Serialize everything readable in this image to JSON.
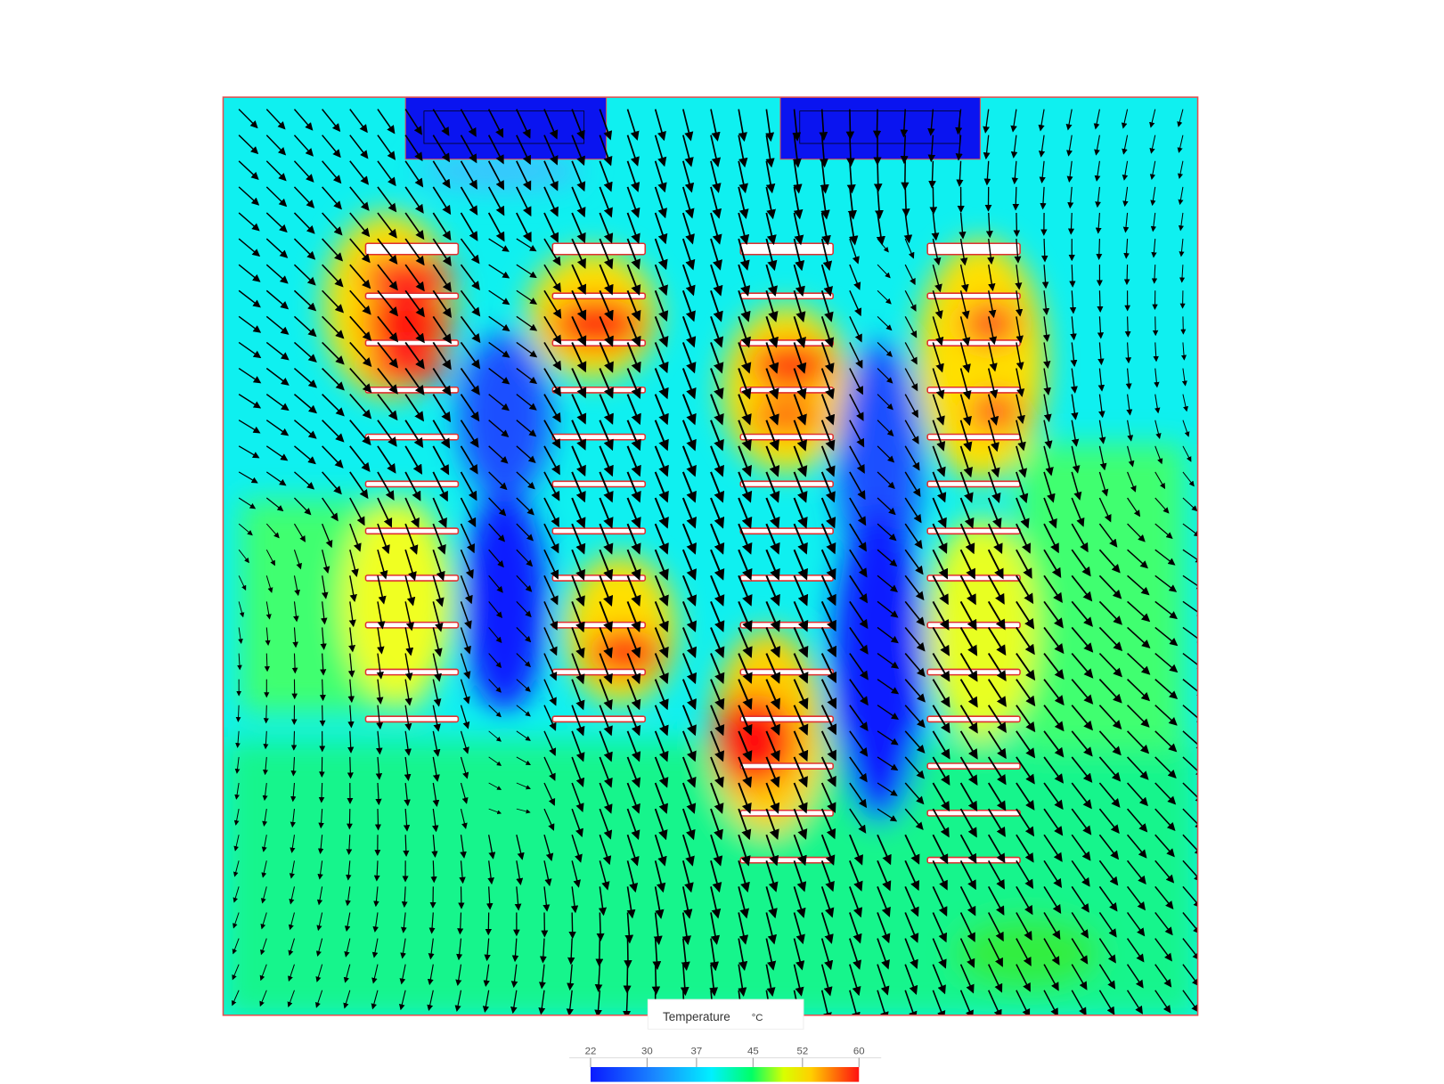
{
  "legend": {
    "title": "Temperature",
    "unit": "°C",
    "range": [
      22,
      60
    ],
    "ticks": [
      22,
      30,
      37,
      45,
      52,
      60
    ]
  }
}
